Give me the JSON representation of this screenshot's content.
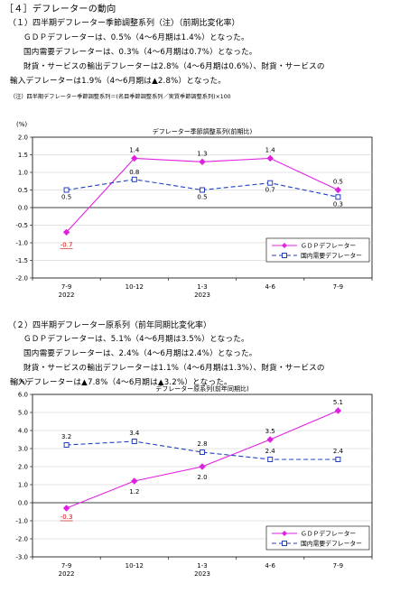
{
  "heading": "［４］デフレーターの動向",
  "section1": {
    "title": "（１）四半期デフレーター季節調整系列（注）（前期比変化率）",
    "lines": [
      "ＧＤＰデフレーターは、0.5%（4～6月期は1.4%）となった。",
      "国内需要デフレーターは、0.3%（4～6月期は0.7%）となった。",
      "財貨・サービスの輸出デフレーターは2.8%（4～6月期は0.6%）、財貨・サービスの",
      "輸入デフレーターは1.9%（4～6月期は▲2.8%）となった。"
    ],
    "note": "（注）四半期デフレーター季節調整系列＝(名目季節調整系列／実質季節調整系列)×100"
  },
  "section2": {
    "title": "（２）四半期デフレーター原系列（前年同期比変化率）",
    "lines": [
      "ＧＤＰデフレーターは、5.1%（4～6月期は3.5%）となった。",
      "国内需要デフレーターは、2.4%（4～6月期は2.4%）となった。",
      "財貨・サービスの輸出デフレーターは1.1%（4～6月期は1.3%）、財貨・サービスの",
      "輸入デフレーターは▲7.8%（4～6月期は▲3.2%）となった。"
    ]
  },
  "chart_data": [
    {
      "type": "line",
      "title": "デフレーター季節調整系列(前期比)",
      "ylabel": "(%)",
      "categories": [
        "7-9",
        "10-12",
        "1-3",
        "4-6",
        "7-9"
      ],
      "year_labels": [
        "2022",
        "",
        "2023",
        "",
        ""
      ],
      "ylim": [
        -2.0,
        2.0
      ],
      "yticks": [
        "2.0",
        "1.5",
        "1.0",
        "0.5",
        "0.0",
        "-0.5",
        "-1.0",
        "-1.5",
        "-2.0"
      ],
      "legend_position": "bottom-right",
      "series": [
        {
          "name": "ＧＤＰデフレーター",
          "color": "#e020e0",
          "marker": "diamond",
          "dash": "",
          "values": [
            -0.7,
            1.4,
            1.3,
            1.4,
            0.5
          ],
          "labels": [
            "-0.7",
            "1.4",
            "1.3",
            "1.4",
            "0.5"
          ]
        },
        {
          "name": "国内需要デフレーター",
          "color": "#2040c0",
          "marker": "square",
          "dash": "5,3",
          "values": [
            0.5,
            0.8,
            0.5,
            0.7,
            0.3
          ],
          "labels": [
            "0.5",
            "0.8",
            "0.5",
            "0.7",
            "0.3"
          ]
        }
      ]
    },
    {
      "type": "line",
      "title": "デフレーター原系列(前年同期比)",
      "ylabel": "(%)",
      "categories": [
        "7-9",
        "10-12",
        "1-3",
        "4-6",
        "7-9"
      ],
      "year_labels": [
        "2022",
        "",
        "2023",
        "",
        ""
      ],
      "ylim": [
        -3.0,
        6.0
      ],
      "yticks": [
        "6.0",
        "5.0",
        "4.0",
        "3.0",
        "2.0",
        "1.0",
        "0.0",
        "-1.0",
        "-2.0",
        "-3.0"
      ],
      "legend_position": "bottom-right",
      "series": [
        {
          "name": "ＧＤＰデフレーター",
          "color": "#e020e0",
          "marker": "diamond",
          "dash": "",
          "values": [
            -0.3,
            1.2,
            2.0,
            3.5,
            5.1
          ],
          "labels": [
            "-0.3",
            "1.2",
            "2.0",
            "3.5",
            "5.1"
          ]
        },
        {
          "name": "国内需要デフレーター",
          "color": "#2040c0",
          "marker": "square",
          "dash": "5,3",
          "values": [
            3.2,
            3.4,
            2.8,
            2.4,
            2.4
          ],
          "labels": [
            "3.2",
            "3.4",
            "2.8",
            "2.4",
            "2.4"
          ]
        }
      ]
    }
  ]
}
